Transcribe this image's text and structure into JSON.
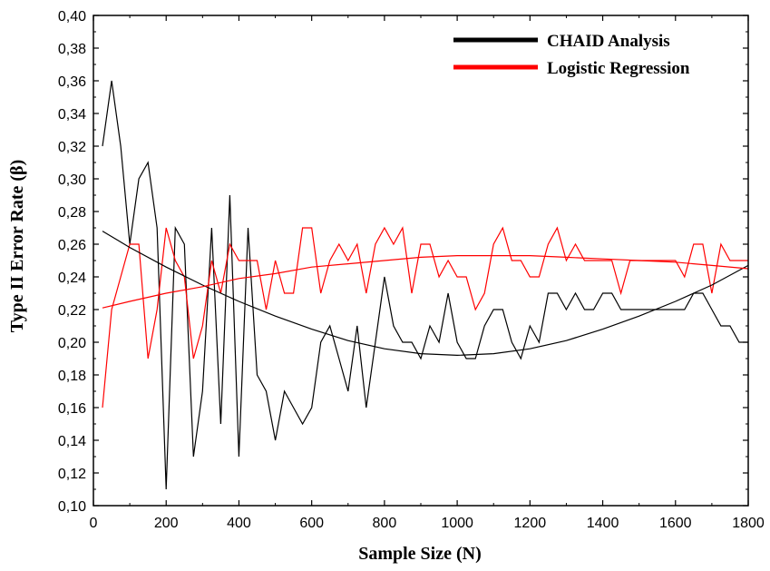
{
  "chart_data": {
    "type": "line",
    "title": "",
    "xlabel": "Sample Size (N)",
    "ylabel": "Type II Error Rate (β)",
    "xlim": [
      0,
      1800
    ],
    "ylim": [
      0.1,
      0.4
    ],
    "x_ticks": [
      0,
      200,
      400,
      600,
      800,
      1000,
      1200,
      1400,
      1600,
      1800
    ],
    "x_tick_labels": [
      "0",
      "200",
      "400",
      "600",
      "800",
      "1000",
      "1200",
      "1400",
      "1600",
      "1800"
    ],
    "y_ticks": [
      0.1,
      0.12,
      0.14,
      0.16,
      0.18,
      0.2,
      0.22,
      0.24,
      0.26,
      0.28,
      0.3,
      0.32,
      0.34,
      0.36,
      0.38,
      0.4
    ],
    "y_tick_labels": [
      "0,10",
      "0,12",
      "0,14",
      "0,16",
      "0,18",
      "0,20",
      "0,22",
      "0,24",
      "0,26",
      "0,28",
      "0,30",
      "0,32",
      "0,34",
      "0,36",
      "0,38",
      "0,40"
    ],
    "grid": false,
    "legend_position": "top-right",
    "series": [
      {
        "name": "CHAID Analysis",
        "color": "#000000",
        "x": [
          25,
          50,
          75,
          100,
          125,
          150,
          175,
          200,
          225,
          250,
          275,
          300,
          325,
          350,
          375,
          400,
          425,
          450,
          475,
          500,
          525,
          550,
          575,
          600,
          625,
          650,
          675,
          700,
          725,
          750,
          775,
          800,
          825,
          850,
          875,
          900,
          925,
          950,
          975,
          1000,
          1025,
          1050,
          1075,
          1100,
          1125,
          1150,
          1175,
          1200,
          1225,
          1250,
          1275,
          1300,
          1325,
          1350,
          1375,
          1400,
          1425,
          1450,
          1475,
          1500,
          1525,
          1550,
          1575,
          1600,
          1625,
          1650,
          1675,
          1700,
          1725,
          1750,
          1775,
          1800
        ],
        "y": [
          0.32,
          0.36,
          0.32,
          0.26,
          0.3,
          0.31,
          0.27,
          0.11,
          0.27,
          0.26,
          0.13,
          0.17,
          0.27,
          0.15,
          0.29,
          0.13,
          0.27,
          0.18,
          0.17,
          0.14,
          0.17,
          0.16,
          0.15,
          0.16,
          0.2,
          0.21,
          0.19,
          0.17,
          0.21,
          0.16,
          0.2,
          0.24,
          0.21,
          0.2,
          0.2,
          0.19,
          0.21,
          0.2,
          0.23,
          0.2,
          0.19,
          0.19,
          0.21,
          0.22,
          0.22,
          0.2,
          0.19,
          0.21,
          0.2,
          0.23,
          0.23,
          0.22,
          0.23,
          0.22,
          0.22,
          0.23,
          0.23,
          0.22,
          0.22,
          0.22,
          0.22,
          0.22,
          0.22,
          0.22,
          0.22,
          0.23,
          0.23,
          0.22,
          0.21,
          0.21,
          0.2,
          0.2
        ]
      },
      {
        "name": "Logistic Regression",
        "color": "#ff0000",
        "x": [
          25,
          50,
          75,
          100,
          125,
          150,
          175,
          200,
          225,
          250,
          275,
          300,
          325,
          350,
          375,
          400,
          425,
          450,
          475,
          500,
          525,
          550,
          575,
          600,
          625,
          650,
          675,
          700,
          725,
          750,
          775,
          800,
          825,
          850,
          875,
          900,
          925,
          950,
          975,
          1000,
          1025,
          1050,
          1075,
          1100,
          1125,
          1150,
          1175,
          1200,
          1225,
          1250,
          1275,
          1300,
          1325,
          1350,
          1375,
          1400,
          1425,
          1450,
          1475,
          1500,
          1525,
          1550,
          1575,
          1600,
          1625,
          1650,
          1675,
          1700,
          1725,
          1750,
          1775,
          1800
        ],
        "y": [
          0.16,
          0.22,
          0.24,
          0.26,
          0.26,
          0.19,
          0.22,
          0.27,
          0.25,
          0.24,
          0.19,
          0.21,
          0.25,
          0.23,
          0.26,
          0.25,
          0.25,
          0.25,
          0.22,
          0.25,
          0.23,
          0.23,
          0.27,
          0.27,
          0.23,
          0.25,
          0.26,
          0.25,
          0.26,
          0.23,
          0.26,
          0.27,
          0.26,
          0.27,
          0.23,
          0.26,
          0.26,
          0.24,
          0.25,
          0.24,
          0.24,
          0.22,
          0.23,
          0.26,
          0.27,
          0.25,
          0.25,
          0.24,
          0.24,
          0.26,
          0.27,
          0.25,
          0.26,
          0.25,
          0.25,
          0.25,
          0.25,
          0.23,
          0.25,
          0.25,
          0.25,
          0.25,
          0.25,
          0.25,
          0.24,
          0.26,
          0.26,
          0.23,
          0.26,
          0.25,
          0.25,
          0.25
        ]
      },
      {
        "name": "",
        "kind": "fit",
        "color": "#000000",
        "x": [
          25,
          100,
          200,
          300,
          400,
          500,
          600,
          700,
          800,
          900,
          1000,
          1100,
          1200,
          1300,
          1400,
          1500,
          1600,
          1700,
          1800
        ],
        "y": [
          0.268,
          0.258,
          0.246,
          0.235,
          0.225,
          0.216,
          0.208,
          0.201,
          0.196,
          0.193,
          0.192,
          0.193,
          0.196,
          0.201,
          0.208,
          0.216,
          0.225,
          0.235,
          0.247
        ]
      },
      {
        "name": "",
        "kind": "fit",
        "color": "#ff0000",
        "x": [
          25,
          100,
          200,
          300,
          400,
          500,
          600,
          700,
          800,
          900,
          1000,
          1100,
          1200,
          1300,
          1400,
          1500,
          1600,
          1700,
          1800
        ],
        "y": [
          0.221,
          0.225,
          0.23,
          0.234,
          0.239,
          0.242,
          0.246,
          0.248,
          0.25,
          0.252,
          0.253,
          0.253,
          0.253,
          0.252,
          0.251,
          0.25,
          0.249,
          0.247,
          0.245
        ]
      }
    ]
  }
}
